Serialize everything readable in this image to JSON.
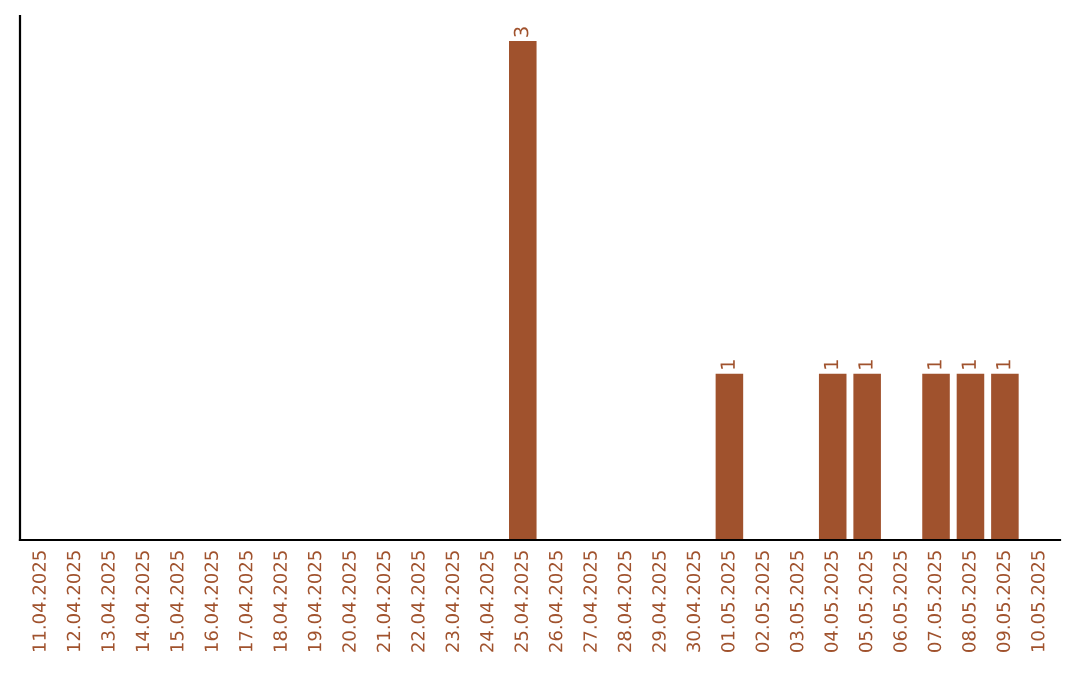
{
  "chart_data": {
    "type": "bar",
    "categories": [
      "11.04.2025",
      "12.04.2025",
      "13.04.2025",
      "14.04.2025",
      "15.04.2025",
      "16.04.2025",
      "17.04.2025",
      "18.04.2025",
      "19.04.2025",
      "20.04.2025",
      "21.04.2025",
      "22.04.2025",
      "23.04.2025",
      "24.04.2025",
      "25.04.2025",
      "26.04.2025",
      "27.04.2025",
      "28.04.2025",
      "29.04.2025",
      "30.04.2025",
      "01.05.2025",
      "02.05.2025",
      "03.05.2025",
      "04.05.2025",
      "05.05.2025",
      "06.05.2025",
      "07.05.2025",
      "08.05.2025",
      "09.05.2025",
      "10.05.2025"
    ],
    "values": [
      null,
      null,
      null,
      null,
      null,
      null,
      null,
      null,
      null,
      null,
      null,
      null,
      null,
      null,
      3,
      null,
      null,
      null,
      null,
      null,
      1,
      null,
      null,
      1,
      1,
      null,
      1,
      1,
      1,
      null
    ],
    "data_labels": true,
    "color": "#a0522d",
    "grid": false,
    "tick_labels": "x"
  }
}
